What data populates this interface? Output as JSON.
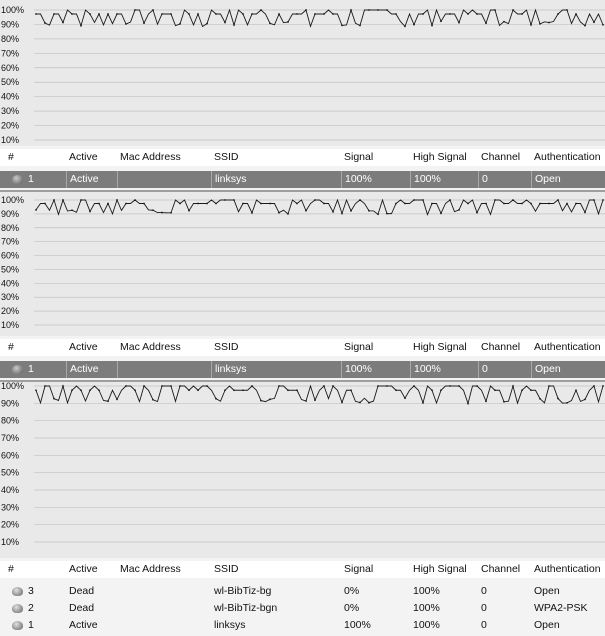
{
  "charts": [
    {
      "y_labels": [
        "100%",
        "90%",
        "80%",
        "70%",
        "60%",
        "50%",
        "40%",
        "30%",
        "20%",
        "10%"
      ]
    },
    {
      "y_labels": [
        "100%",
        "90%",
        "80%",
        "70%",
        "60%",
        "50%",
        "40%",
        "30%",
        "20%",
        "10%"
      ]
    },
    {
      "y_labels": [
        "100%",
        "90%",
        "80%",
        "70%",
        "60%",
        "50%",
        "40%",
        "30%",
        "20%",
        "10%"
      ]
    }
  ],
  "columns": [
    "#",
    "Active",
    "Mac Address",
    "SSID",
    "Signal",
    "High Signal",
    "Channel",
    "Authentication"
  ],
  "tables": [
    {
      "rows": [
        {
          "num": "1",
          "active": "Active",
          "mac": "",
          "ssid": "linksys",
          "signal": "100%",
          "high_signal": "100%",
          "channel": "0",
          "auth": "Open",
          "selected": true
        }
      ]
    },
    {
      "rows": [
        {
          "num": "1",
          "active": "Active",
          "mac": "",
          "ssid": "linksys",
          "signal": "100%",
          "high_signal": "100%",
          "channel": "0",
          "auth": "Open",
          "selected": true
        }
      ]
    },
    {
      "rows": [
        {
          "num": "3",
          "active": "Dead",
          "mac": "",
          "ssid": "wl-BibTiz-bg",
          "signal": "0%",
          "high_signal": "100%",
          "channel": "0",
          "auth": "Open",
          "selected": false
        },
        {
          "num": "2",
          "active": "Dead",
          "mac": "",
          "ssid": "wl-BibTiz-bgn",
          "signal": "0%",
          "high_signal": "100%",
          "channel": "0",
          "auth": "WPA2-PSK",
          "selected": false
        },
        {
          "num": "1",
          "active": "Active",
          "mac": "",
          "ssid": "linksys",
          "signal": "100%",
          "high_signal": "100%",
          "channel": "0",
          "auth": "Open",
          "selected": false
        }
      ]
    }
  ]
}
